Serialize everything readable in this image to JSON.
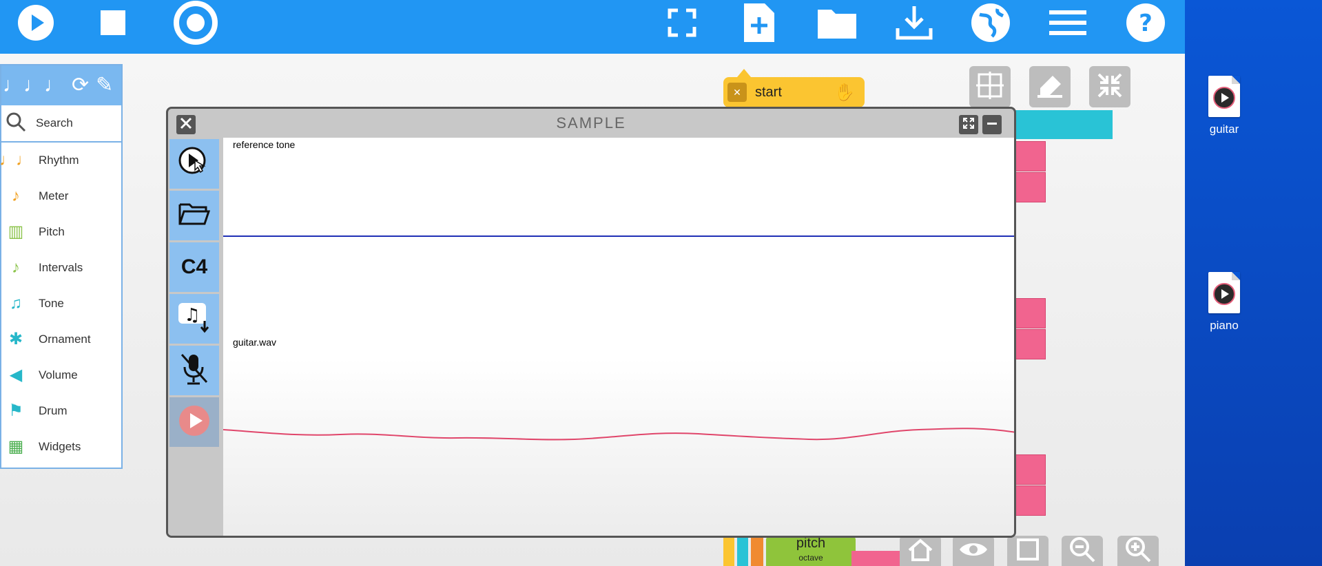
{
  "toolbar": {
    "left": [
      {
        "name": "play-icon"
      },
      {
        "name": "stop-icon"
      },
      {
        "name": "record-icon"
      }
    ],
    "right": [
      {
        "name": "fullscreen-icon"
      },
      {
        "name": "new-file-icon"
      },
      {
        "name": "open-folder-icon"
      },
      {
        "name": "download-icon"
      },
      {
        "name": "globe-icon"
      },
      {
        "name": "menu-icon"
      },
      {
        "name": "help-icon"
      }
    ],
    "accent": "#2196f3"
  },
  "palette": {
    "search_label": "Search",
    "items": [
      {
        "label": "Rhythm",
        "icon": "rhythm-icon",
        "glyph": "♩♩",
        "color": "#f0a020"
      },
      {
        "label": "Meter",
        "icon": "meter-icon",
        "glyph": "♪",
        "color": "#f0a020"
      },
      {
        "label": "Pitch",
        "icon": "pitch-icon",
        "glyph": "▥",
        "color": "#8bc34a"
      },
      {
        "label": "Intervals",
        "icon": "intervals-icon",
        "glyph": "♪",
        "color": "#8bc34a"
      },
      {
        "label": "Tone",
        "icon": "tone-icon",
        "glyph": "♫",
        "color": "#26b7c9"
      },
      {
        "label": "Ornament",
        "icon": "ornament-icon",
        "glyph": "✱",
        "color": "#26b7c9"
      },
      {
        "label": "Volume",
        "icon": "volume-icon",
        "glyph": "◀",
        "color": "#26b7c9"
      },
      {
        "label": "Drum",
        "icon": "drum-icon",
        "glyph": "⚑",
        "color": "#26b7c9"
      },
      {
        "label": "Widgets",
        "icon": "widgets-icon",
        "glyph": "▦",
        "color": "#4caf50"
      }
    ]
  },
  "blocks": {
    "start_label": "start",
    "pitch_label": "pitch",
    "octave_label": "octave"
  },
  "sample_window": {
    "title": "SAMPLE",
    "pitch_button_label": "C4",
    "reference_label": "reference tone",
    "sample_label": "guitar.wav",
    "reference_color": "#1f2fb5",
    "sample_color": "#e0456a"
  },
  "desktop": {
    "icons": [
      {
        "label": "guitar"
      },
      {
        "label": "piano"
      }
    ]
  }
}
